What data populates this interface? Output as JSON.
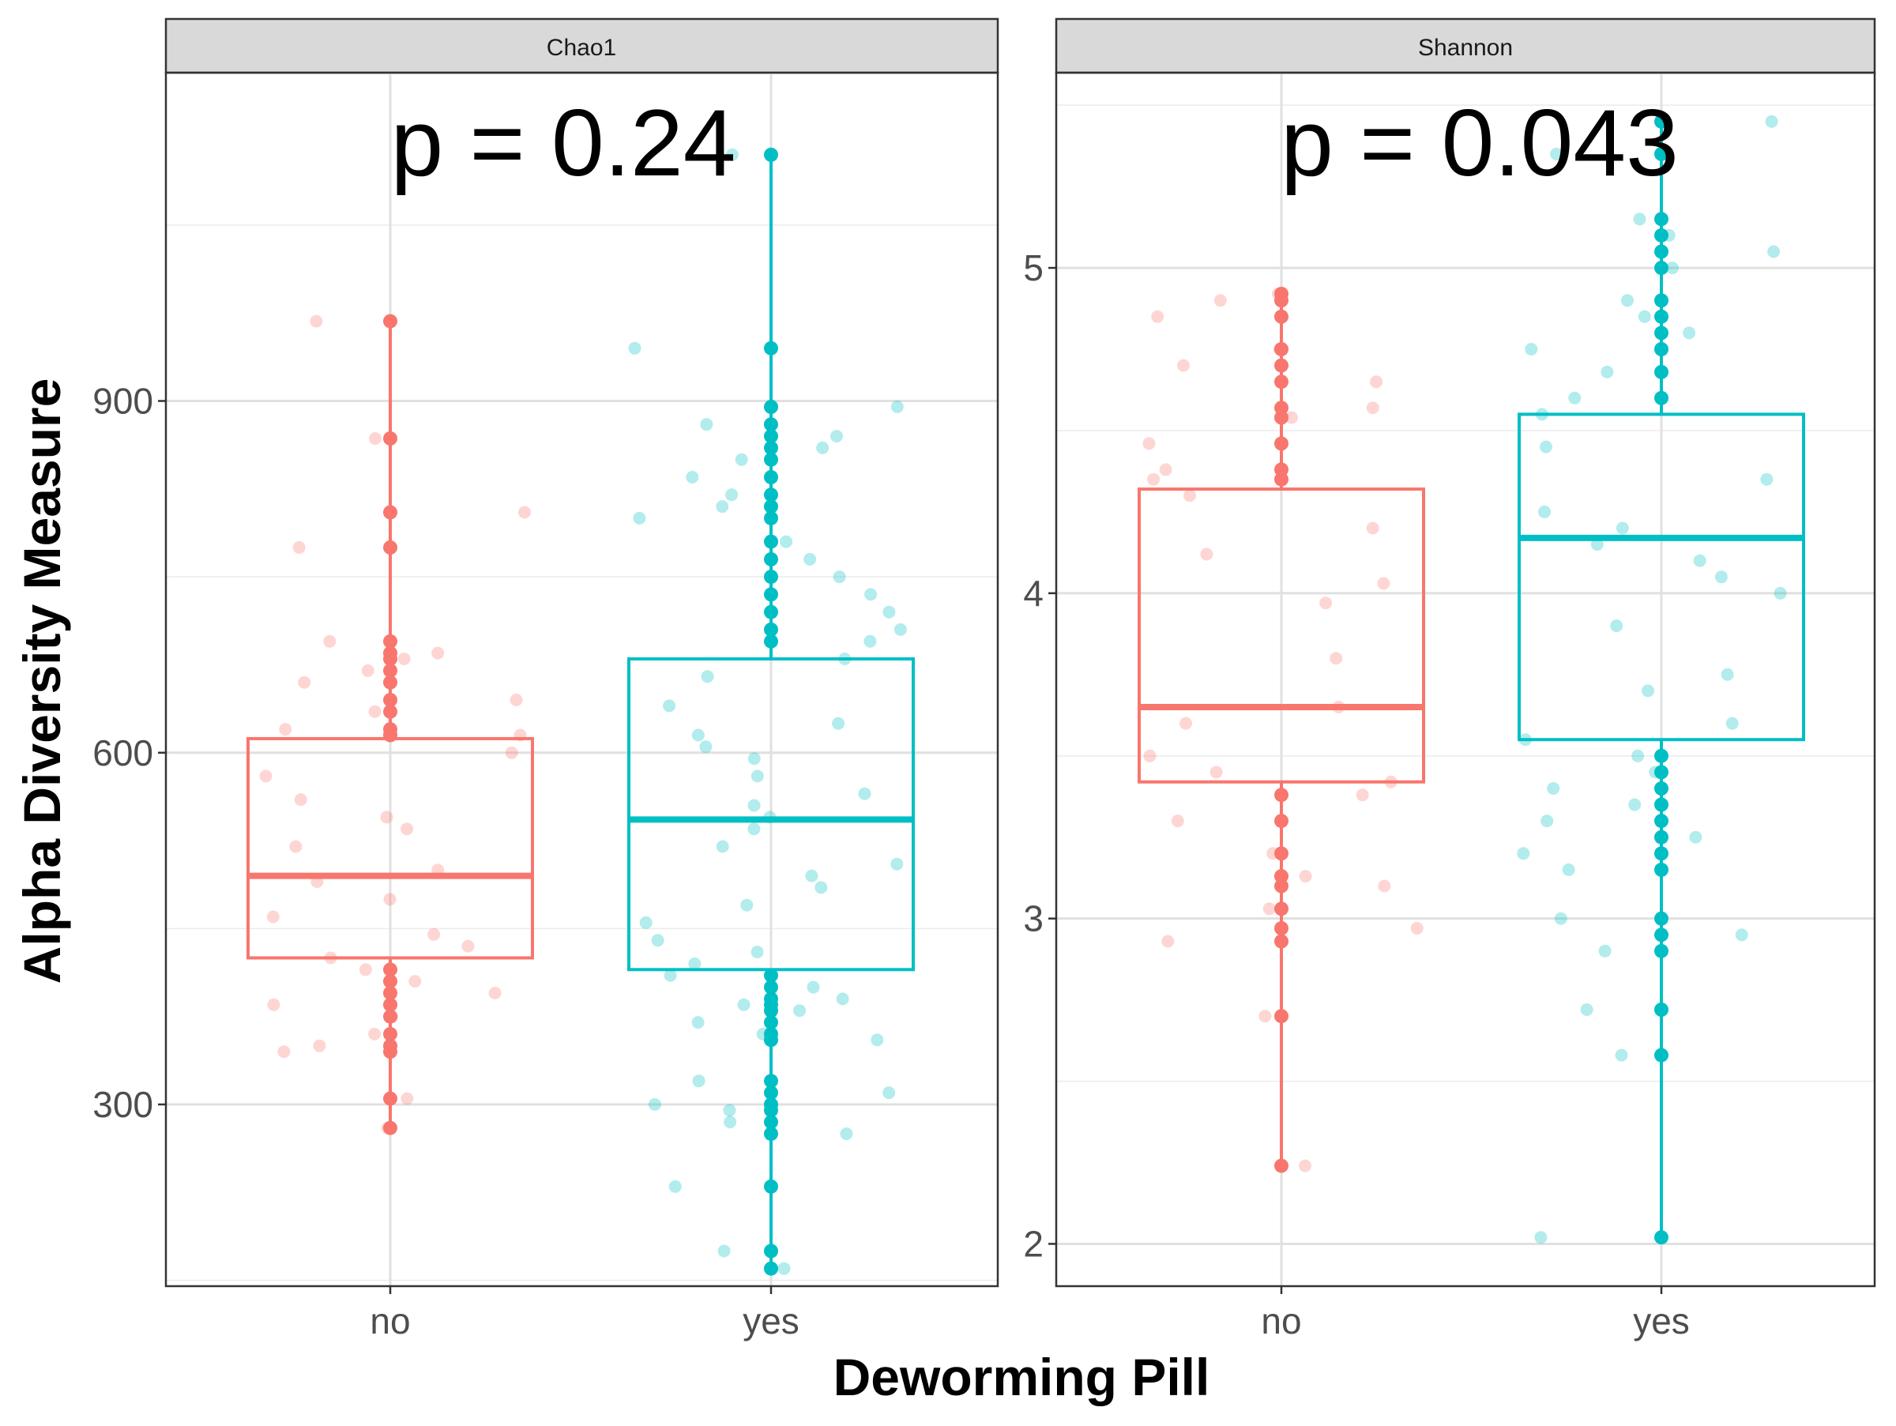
{
  "chart_data": {
    "type": "box",
    "xlabel": "Deworming Pill",
    "ylabel": "Alpha Diversity Measure",
    "categories": [
      "no",
      "yes"
    ],
    "colors": {
      "no": "#F8766D",
      "yes": "#00BFC4"
    },
    "panels": [
      {
        "title": "Chao1",
        "p_label": "p = 0.24",
        "ylim": [
          145,
          1180
        ],
        "major_ticks": [
          300,
          600,
          900
        ],
        "minor_ticks": [
          150,
          450,
          750,
          1050
        ],
        "boxes": {
          "no": {
            "q1": 425,
            "median": 495,
            "q3": 612,
            "lower": 280,
            "upper": 968
          },
          "yes": {
            "q1": 415,
            "median": 543,
            "q3": 680,
            "lower": 160,
            "upper": 1110
          }
        },
        "points": {
          "no": [
            280,
            305,
            345,
            350,
            360,
            375,
            385,
            395,
            405,
            415,
            425,
            435,
            445,
            460,
            475,
            490,
            500,
            520,
            535,
            545,
            560,
            580,
            600,
            615,
            620,
            635,
            645,
            660,
            670,
            680,
            685,
            695,
            775,
            805,
            868,
            968
          ],
          "yes": [
            160,
            175,
            230,
            275,
            285,
            295,
            300,
            310,
            320,
            355,
            360,
            370,
            380,
            385,
            390,
            400,
            410,
            420,
            430,
            440,
            455,
            470,
            485,
            495,
            505,
            520,
            535,
            545,
            555,
            565,
            580,
            595,
            605,
            615,
            625,
            640,
            665,
            680,
            695,
            705,
            720,
            735,
            750,
            765,
            780,
            800,
            810,
            820,
            835,
            850,
            860,
            870,
            880,
            895,
            945,
            1110
          ]
        }
      },
      {
        "title": "Shannon",
        "p_label": "p = 0.043",
        "ylim": [
          1.87,
          5.6
        ],
        "major_ticks": [
          2,
          3,
          4,
          5
        ],
        "minor_ticks": [
          2.5,
          3.5,
          4.5,
          5.5
        ],
        "boxes": {
          "no": {
            "q1": 3.42,
            "median": 3.65,
            "q3": 4.32,
            "lower": 2.24,
            "upper": 4.92
          },
          "yes": {
            "q1": 3.55,
            "median": 4.17,
            "q3": 4.55,
            "lower": 2.02,
            "upper": 5.45
          }
        },
        "points": {
          "no": [
            2.24,
            2.7,
            2.93,
            2.97,
            3.03,
            3.1,
            3.13,
            3.2,
            3.3,
            3.38,
            3.42,
            3.45,
            3.5,
            3.6,
            3.65,
            3.8,
            3.97,
            4.03,
            4.12,
            4.2,
            4.3,
            4.35,
            4.38,
            4.46,
            4.54,
            4.57,
            4.65,
            4.7,
            4.75,
            4.85,
            4.9,
            4.92
          ],
          "yes": [
            2.02,
            2.58,
            2.72,
            2.9,
            2.95,
            3.0,
            3.15,
            3.2,
            3.25,
            3.3,
            3.35,
            3.4,
            3.45,
            3.5,
            3.55,
            3.6,
            3.7,
            3.75,
            3.9,
            4.0,
            4.05,
            4.1,
            4.15,
            4.2,
            4.25,
            4.35,
            4.45,
            4.55,
            4.6,
            4.68,
            4.75,
            4.8,
            4.85,
            4.9,
            5.0,
            5.05,
            5.1,
            5.15,
            5.35,
            5.45
          ]
        }
      }
    ]
  }
}
